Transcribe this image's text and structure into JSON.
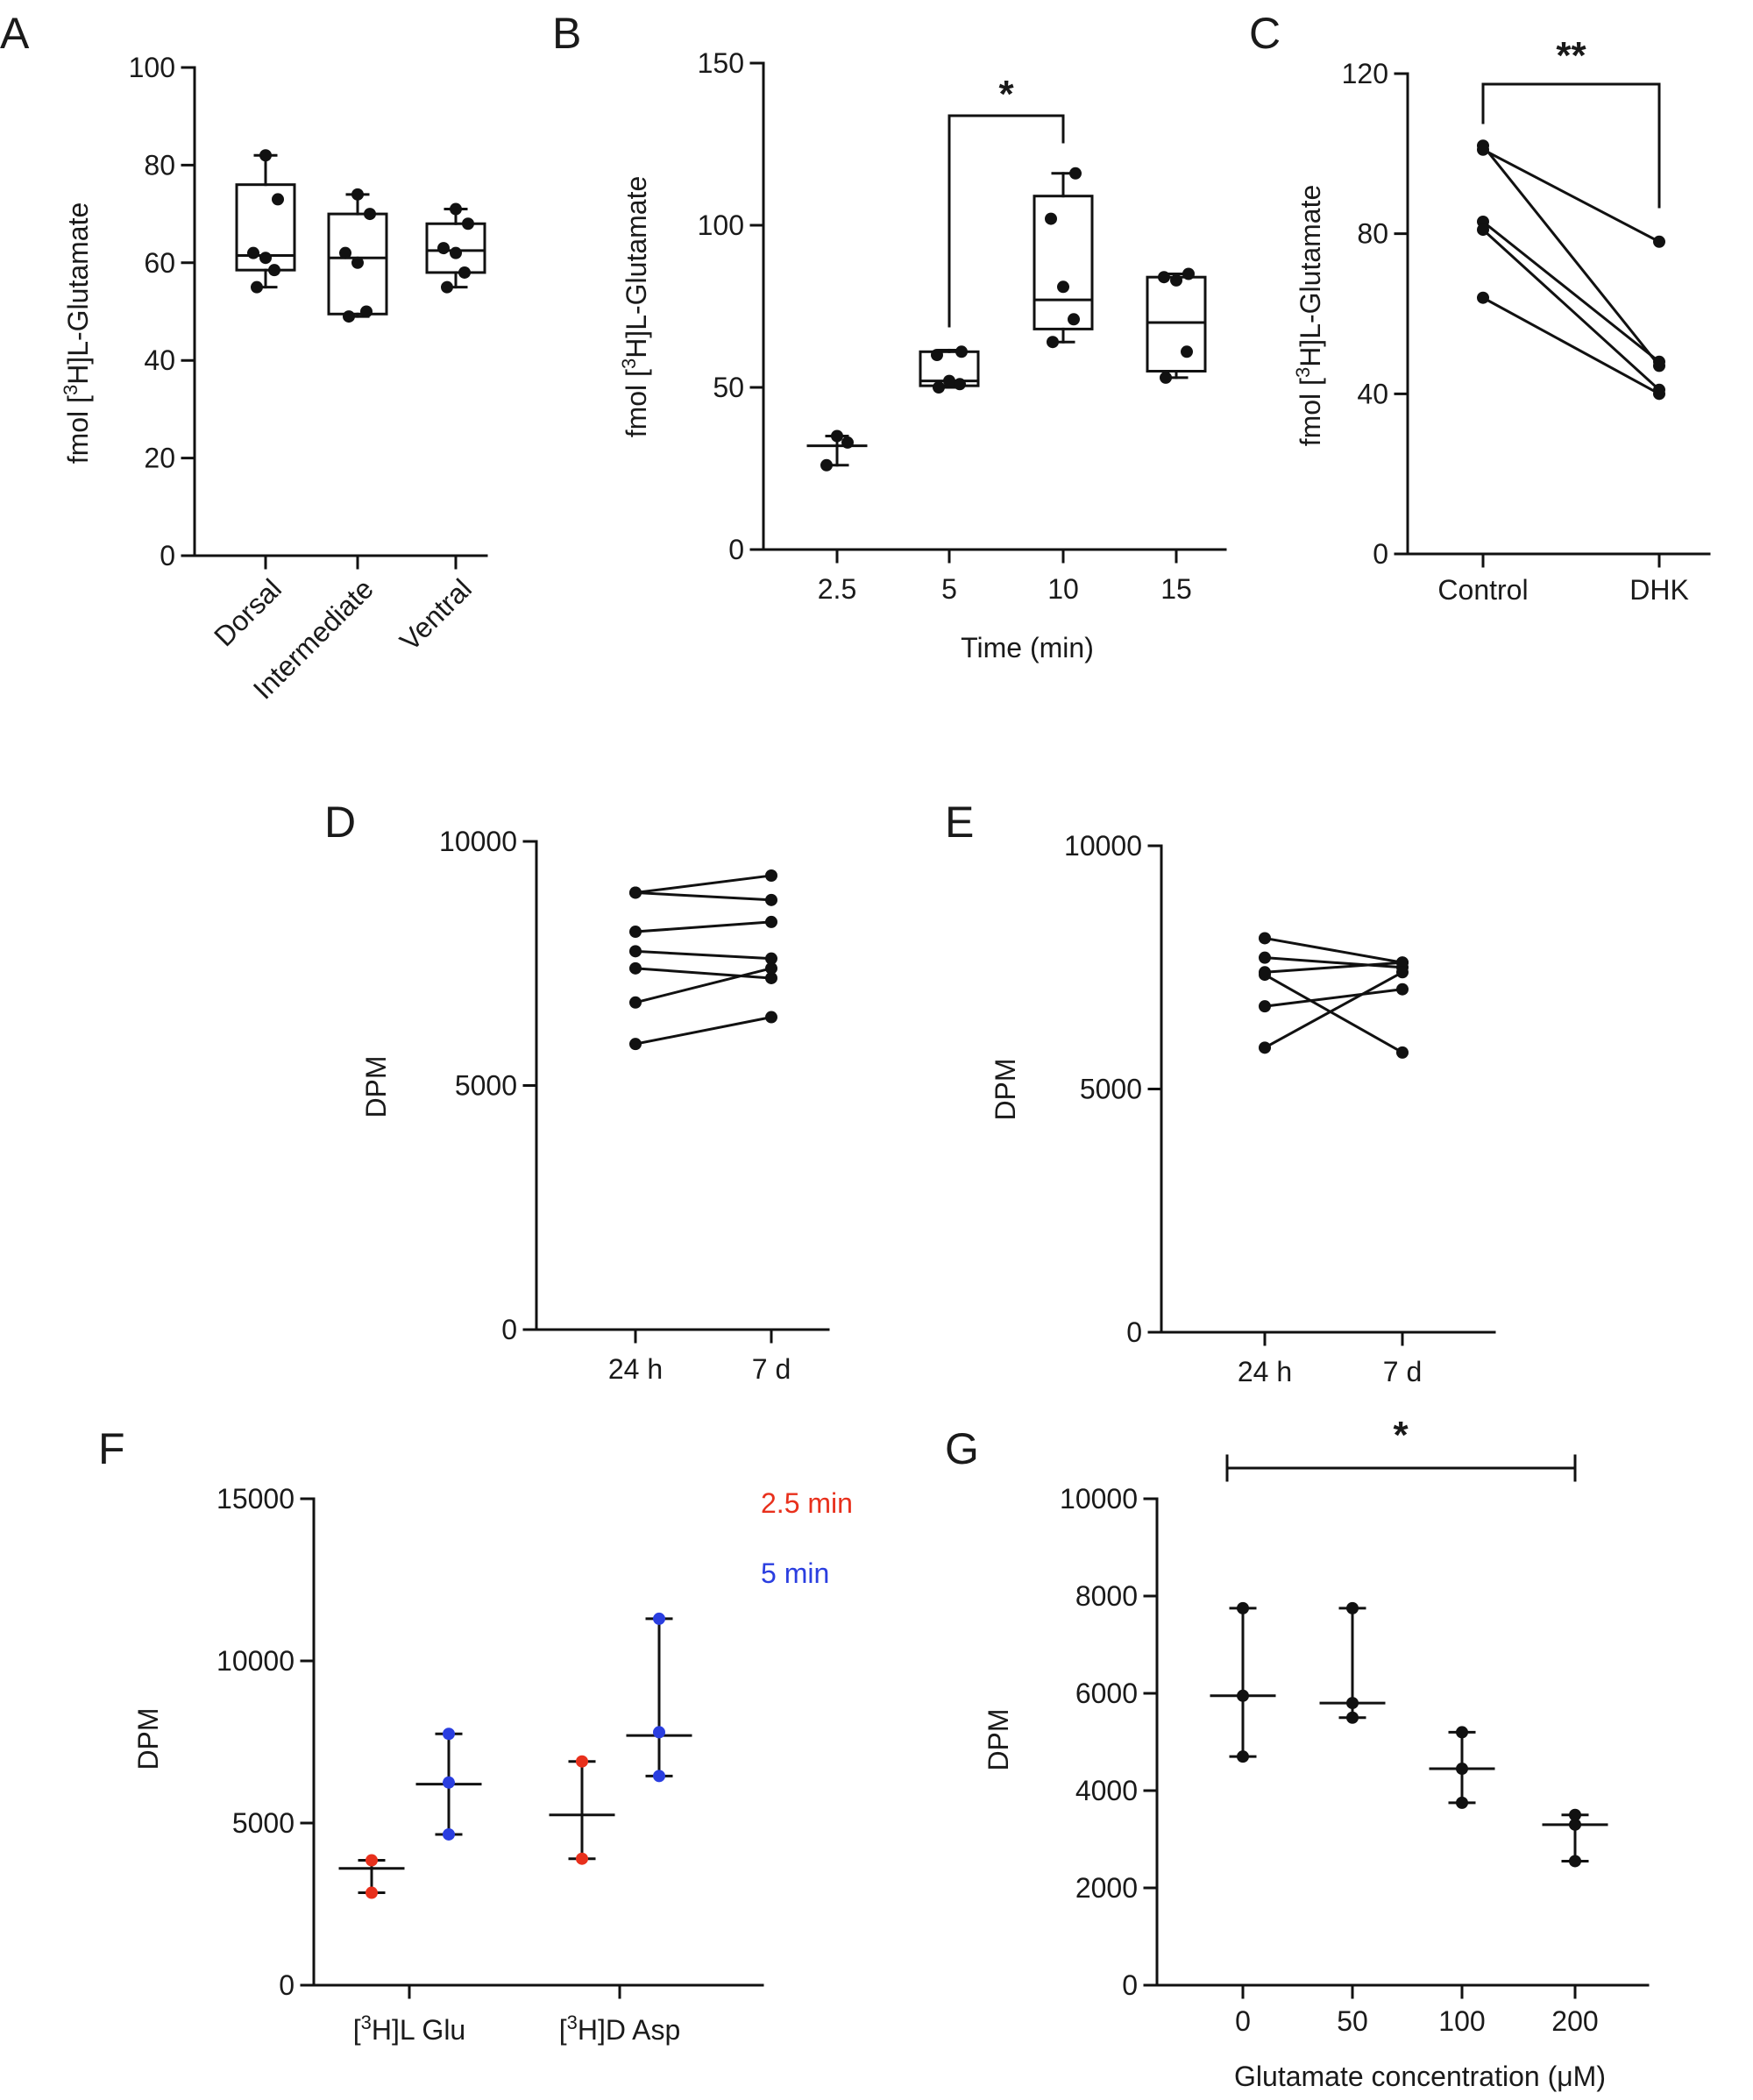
{
  "chart_data": [
    {
      "panel": "A",
      "type": "box",
      "ylabel_parts": [
        "fmol [",
        "3",
        "H]L-Glutamate"
      ],
      "ylim": [
        0,
        100
      ],
      "yticks": [
        "0",
        "20",
        "40",
        "60",
        "80",
        "100"
      ],
      "categories": [
        "Dorsal",
        "Intermediate",
        "Ventral"
      ],
      "boxes": [
        {
          "min": 55,
          "q1": 58.5,
          "median": 61.5,
          "q3": 76,
          "max": 82
        },
        {
          "min": 49,
          "q1": 49.5,
          "median": 61,
          "q3": 70,
          "max": 74
        },
        {
          "min": 55,
          "q1": 58,
          "median": 62.5,
          "q3": 68,
          "max": 71
        }
      ],
      "points": [
        [
          55,
          58.5,
          61,
          62,
          73,
          82
        ],
        [
          49,
          50,
          60,
          62,
          70,
          74
        ],
        [
          55,
          58,
          62,
          63,
          68,
          71
        ]
      ]
    },
    {
      "panel": "B",
      "type": "box",
      "ylabel_parts": [
        "fmol [",
        "3",
        "H]L-Glutamate"
      ],
      "xlabel": "Time (min)",
      "ylim": [
        0,
        150
      ],
      "yticks": [
        "0",
        "50",
        "100",
        "150"
      ],
      "categories": [
        "2.5",
        "5",
        "10",
        "15"
      ],
      "boxes": [
        {
          "min": 26,
          "q1": 32,
          "median": 32,
          "q3": 32,
          "max": 35
        },
        {
          "min": 50,
          "q1": 50.5,
          "median": 52,
          "q3": 61,
          "max": 61.5
        },
        {
          "min": 64,
          "q1": 68,
          "median": 77,
          "q3": 109,
          "max": 116
        },
        {
          "min": 53,
          "q1": 55,
          "median": 70,
          "q3": 84,
          "max": 85
        }
      ],
      "points": [
        [
          26,
          33,
          35
        ],
        [
          50,
          51,
          52,
          60,
          61
        ],
        [
          64,
          71,
          81,
          102,
          116
        ],
        [
          53,
          61,
          83,
          84,
          85
        ]
      ],
      "significance": {
        "from": "5",
        "to": "10",
        "label": "*"
      }
    },
    {
      "panel": "C",
      "type": "paired-line",
      "ylabel_parts": [
        "fmol [",
        "3",
        "H]L-Glutamate"
      ],
      "ylim": [
        0,
        120
      ],
      "yticks": [
        "0",
        "40",
        "80",
        "120"
      ],
      "categories": [
        "Control",
        "DHK"
      ],
      "pairs": [
        [
          102,
          47
        ],
        [
          101,
          78
        ],
        [
          83,
          48
        ],
        [
          81,
          41
        ],
        [
          64,
          40
        ]
      ],
      "significance": {
        "from": "Control",
        "to": "DHK",
        "label": "**"
      }
    },
    {
      "panel": "D",
      "type": "paired-line",
      "ylabel": "DPM",
      "ylim": [
        0,
        10000
      ],
      "yticks": [
        "0",
        "5000",
        "10000"
      ],
      "categories": [
        "24 h",
        "7 d"
      ],
      "pairs": [
        [
          8950,
          9300
        ],
        [
          8950,
          8800
        ],
        [
          8150,
          8350
        ],
        [
          7750,
          7600
        ],
        [
          7400,
          7200
        ],
        [
          6700,
          7400
        ],
        [
          5850,
          6400
        ]
      ]
    },
    {
      "panel": "E",
      "type": "paired-line",
      "ylabel": "DPM",
      "ylim": [
        0,
        10000
      ],
      "yticks": [
        "0",
        "5000",
        "10000"
      ],
      "categories": [
        "24 h",
        "7 d"
      ],
      "pairs": [
        [
          8100,
          7600
        ],
        [
          7700,
          7500
        ],
        [
          7400,
          7600
        ],
        [
          7350,
          5750
        ],
        [
          6700,
          7050
        ],
        [
          5850,
          7400
        ]
      ]
    },
    {
      "panel": "F",
      "type": "scatter-errorbar",
      "ylabel": "DPM",
      "ylim": [
        0,
        15000
      ],
      "yticks": [
        "0",
        "5000",
        "10000",
        "15000"
      ],
      "categories": [
        [
          "[",
          "3",
          "H]L Glu"
        ],
        [
          "[",
          "3",
          "H]D Asp"
        ]
      ],
      "legend": [
        {
          "name": "2.5 min",
          "color": "#e8301c"
        },
        {
          "name": "5 min",
          "color": "#2a3ee0"
        }
      ],
      "groups": [
        {
          "category": 0,
          "series": "2.5 min",
          "mean": 3600,
          "low": 2850,
          "high": 3850,
          "points": [
            2850,
            3850
          ]
        },
        {
          "category": 0,
          "series": "5 min",
          "mean": 6200,
          "low": 4650,
          "high": 7750,
          "points": [
            4650,
            6250,
            7750
          ]
        },
        {
          "category": 1,
          "series": "2.5 min",
          "mean": 5250,
          "low": 3900,
          "high": 6900,
          "points": [
            3900,
            6900
          ]
        },
        {
          "category": 1,
          "series": "5 min",
          "mean": 7700,
          "low": 6450,
          "high": 11300,
          "points": [
            6450,
            7800,
            11300
          ]
        }
      ]
    },
    {
      "panel": "G",
      "type": "scatter-errorbar",
      "ylabel": "DPM",
      "xlabel_parts": [
        "Glutamate concentration (",
        "μ",
        "M)"
      ],
      "ylim": [
        0,
        10000
      ],
      "yticks": [
        "0",
        "2000",
        "4000",
        "6000",
        "8000",
        "10000"
      ],
      "categories": [
        "0",
        "50",
        "100",
        "200"
      ],
      "groups": [
        {
          "mean": 5950,
          "low": 4700,
          "high": 7750,
          "points": [
            4700,
            5950,
            7750
          ]
        },
        {
          "mean": 5800,
          "low": 5500,
          "high": 7750,
          "points": [
            5500,
            5800,
            7750
          ]
        },
        {
          "mean": 4450,
          "low": 3750,
          "high": 5200,
          "points": [
            3750,
            4450,
            5200
          ]
        },
        {
          "mean": 3300,
          "low": 2550,
          "high": 3500,
          "points": [
            2550,
            3300,
            3500
          ]
        }
      ],
      "significance": {
        "from": "0",
        "to": "200",
        "label": "*"
      }
    }
  ]
}
